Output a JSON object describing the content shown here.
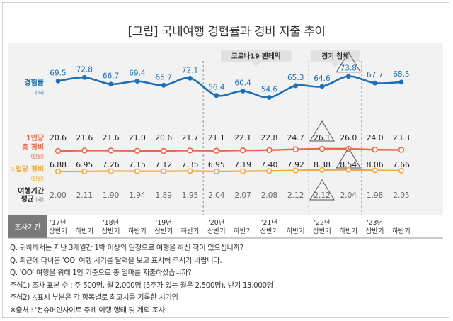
{
  "title": "[그림] 국내여행 경험률과 경비 지출 추이",
  "chart_data": {
    "type": "line",
    "categories": [
      "'17년 상반기",
      "하반기",
      "'18년 상반기",
      "하반기",
      "'19년 상반기",
      "하반기",
      "'20년 상반기",
      "하반기",
      "'21년 상반기",
      "하반기",
      "'22년 상반기",
      "하반기",
      "'23년 상반기",
      "하반기"
    ],
    "x_axis_header": "조사기간",
    "annotations": [
      {
        "label": "코로나19 팬데믹",
        "from": 6,
        "to": 9
      },
      {
        "label": "경기 침체",
        "from": 10,
        "to": 11
      }
    ],
    "series": [
      {
        "key": "exp",
        "name": "경험률",
        "unit": "(%)",
        "color": "#1f6fb5",
        "values": [
          69.5,
          72.8,
          66.7,
          69.4,
          65.7,
          72.1,
          56.4,
          60.4,
          54.6,
          65.3,
          64.6,
          73.8,
          67.7,
          68.5
        ],
        "highlight_index": 11
      },
      {
        "key": "total",
        "name": "1인당 총 경비",
        "unit": "(만원)",
        "color": "#e8694a",
        "values": [
          "20.6",
          "21.6",
          "21.6",
          "21.0",
          "20.6",
          "21.7",
          "21.1",
          "22.1",
          "22.8",
          "24.7",
          "26.1",
          "26.0",
          "24.0",
          "23.3"
        ],
        "highlight_index": 10
      },
      {
        "key": "daily",
        "name": "1일당 경비",
        "unit": "(만원)",
        "color": "#f3a840",
        "values": [
          "6.88",
          "6.95",
          "7.26",
          "7.15",
          "7.12",
          "7.35",
          "6.95",
          "7.19",
          "7.40",
          "7.92",
          "8.38",
          "8.54",
          "8.06",
          "7.66"
        ],
        "highlight_index": 11
      },
      {
        "key": "period",
        "name": "여행기간 평균",
        "unit": "(박)",
        "values": [
          "2.00",
          "2.11",
          "1.90",
          "1.94",
          "1.89",
          "1.95",
          "2.04",
          "2.07",
          "2.08",
          "2.12",
          "2.12",
          "2.04",
          "1.98",
          "2.05"
        ],
        "highlight_index": 10
      }
    ]
  },
  "notes": [
    "Q. 귀하께서는 지난 3개월간 1박 이상의 일정으로 여행을 하신 적이 있으십니까?",
    "Q. 최근에 다녀온 'OO' 여행 시기를 달력을 보고 표시해 주시기 바랍니다.",
    "Q. 'OO' 여행을 위해 1인 기준으로 총 얼마를 지출하셨습니까?",
    "주석1) 조사 표본 수 : 주 500명, 월 2,000명 (5주가 있는 월은 2,500명), 반기 13,000명",
    "주석2) △표시 부분은 각 항목별로 최고치를 기록한 시기임",
    "※출처 : '컨슈머인사이트 주례 여행 행태 및 계획 조사'"
  ]
}
